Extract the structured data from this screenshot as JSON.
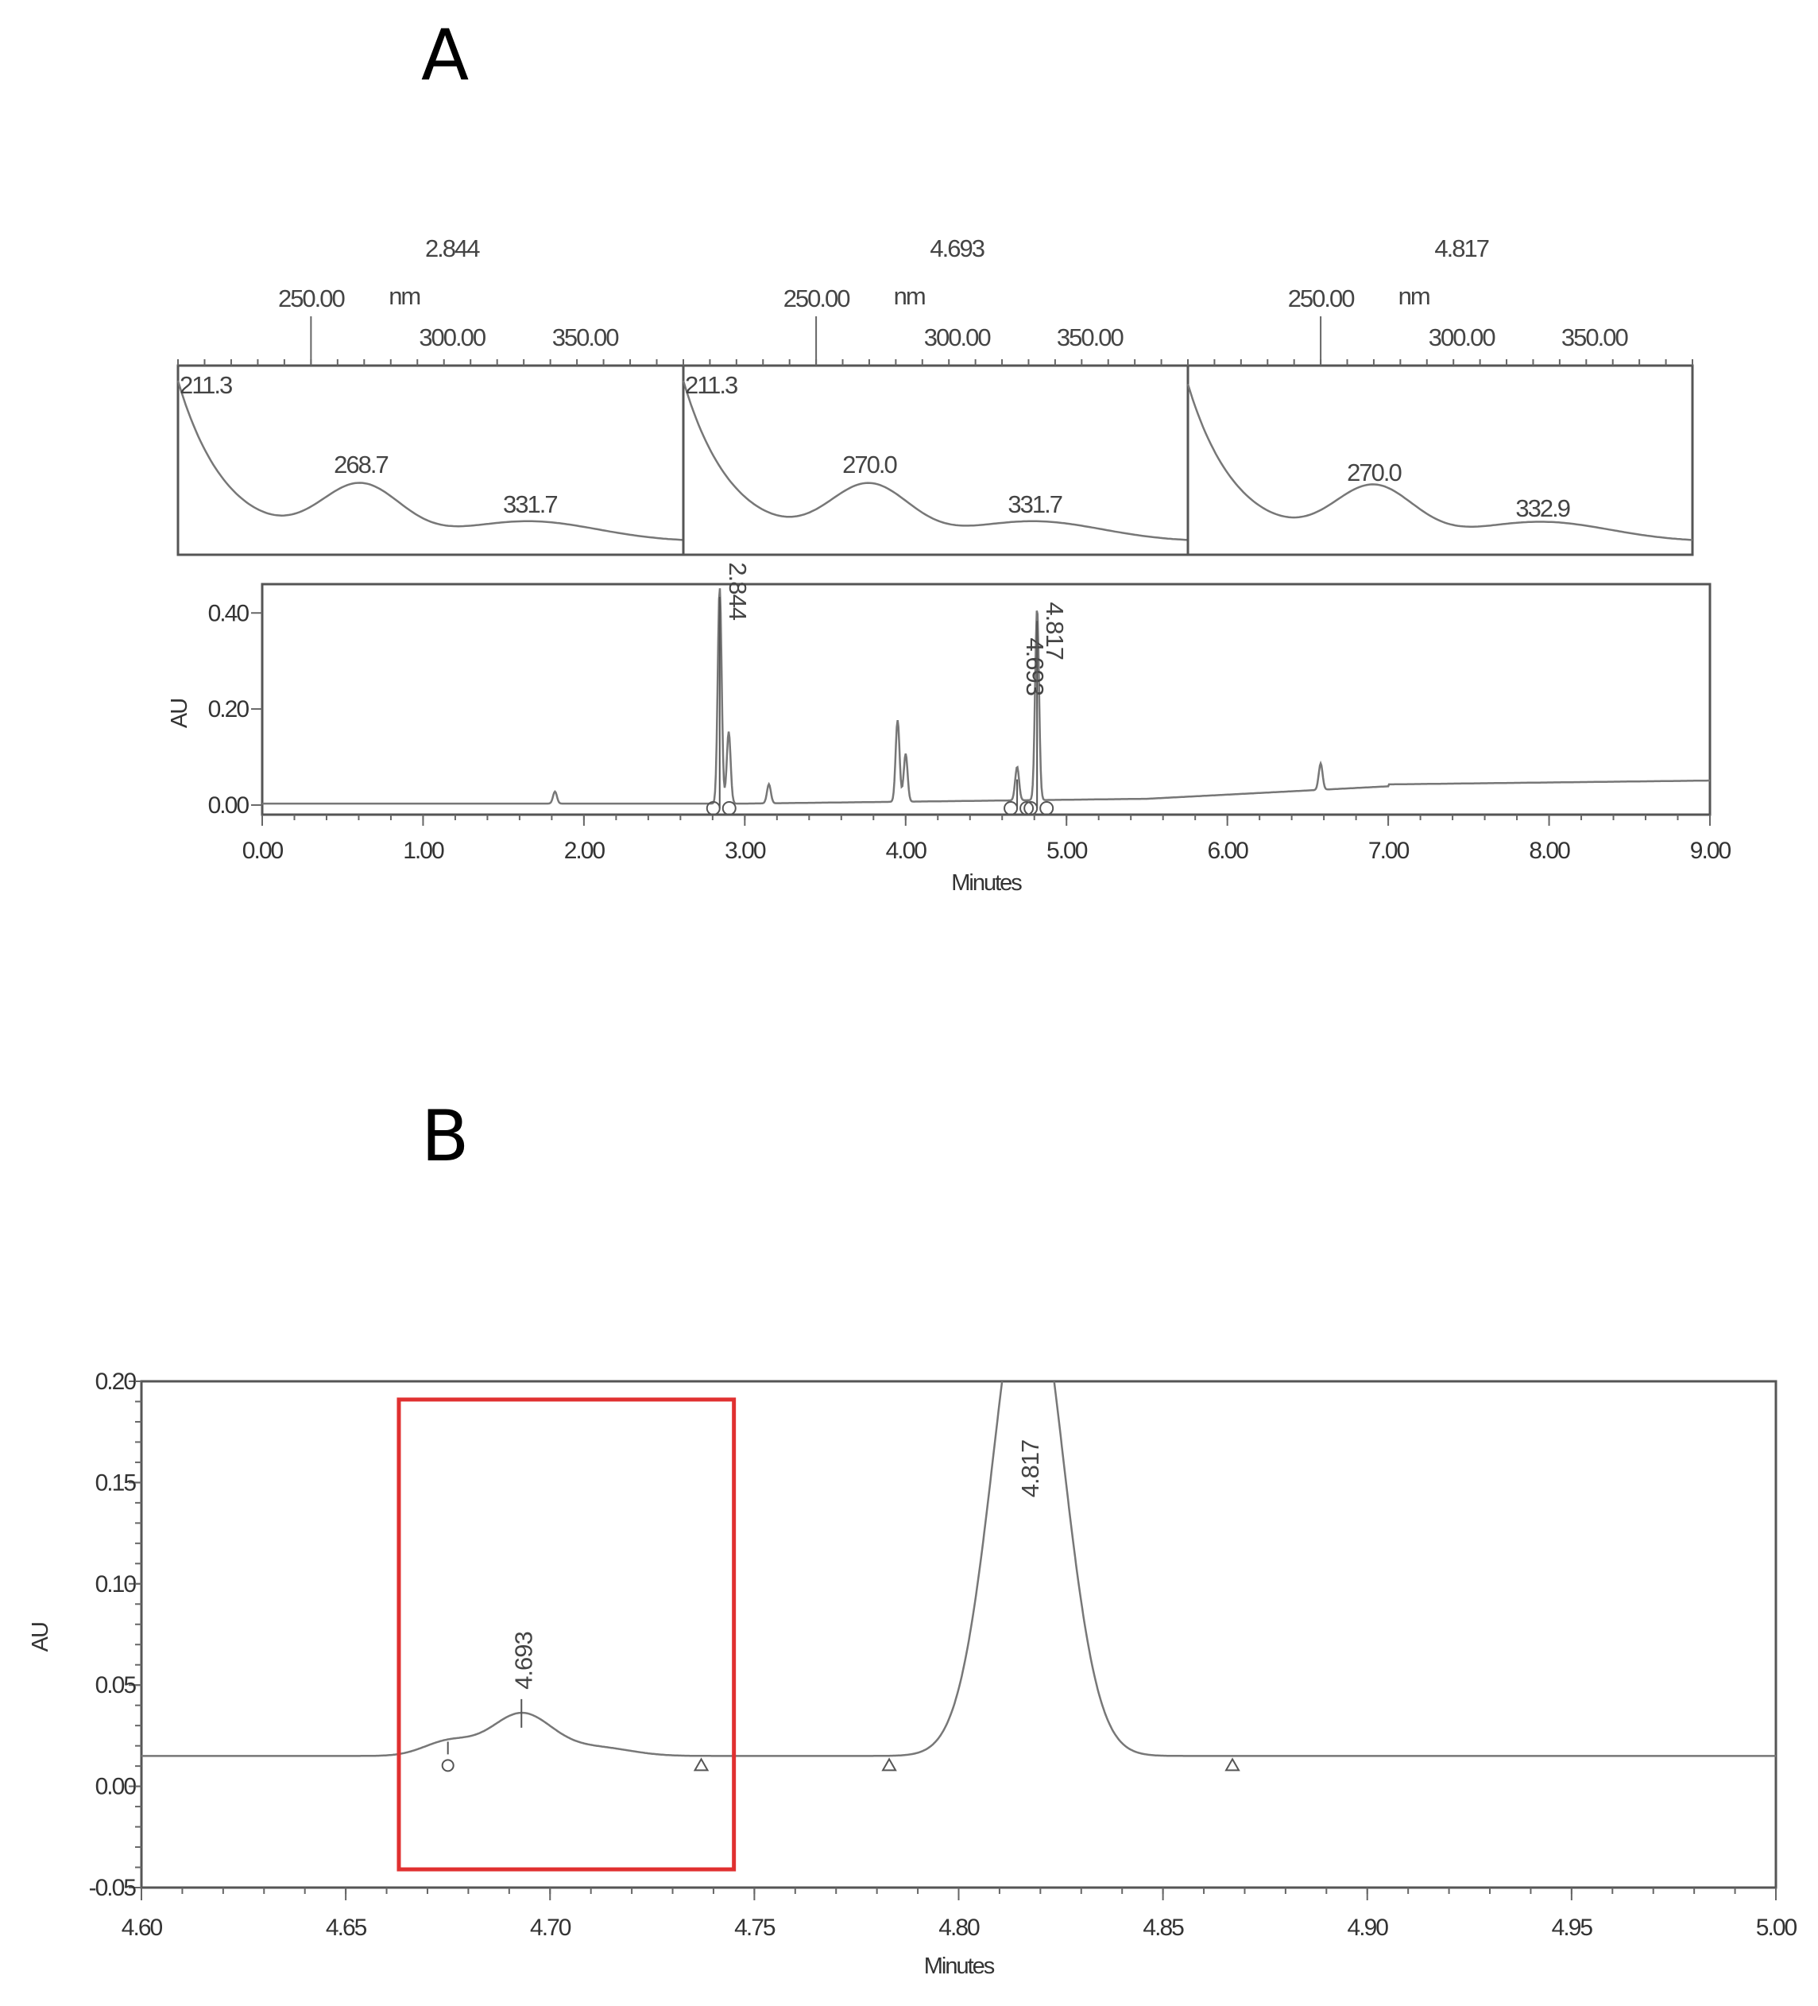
{
  "panels": {
    "a_label": "A",
    "b_label": "B"
  },
  "spectra": [
    {
      "retention_time": "2.844",
      "unit": "nm",
      "top_ticks": [
        "250.00",
        "300.00",
        "350.00"
      ],
      "peak_labels": [
        "211.3",
        "268.7",
        "331.7"
      ]
    },
    {
      "retention_time": "4.693",
      "unit": "nm",
      "top_ticks": [
        "250.00",
        "300.00",
        "350.00"
      ],
      "peak_labels": [
        "211.3",
        "270.0",
        "331.7"
      ]
    },
    {
      "retention_time": "4.817",
      "unit": "nm",
      "top_ticks": [
        "250.00",
        "300.00",
        "350.00"
      ],
      "peak_labels": [
        "270.0",
        "332.9"
      ]
    }
  ],
  "chart_data": [
    {
      "type": "line",
      "title": "",
      "xlabel": "Minutes",
      "ylabel": "AU",
      "xlim": [
        0,
        9
      ],
      "ylim": [
        -0.02,
        0.46
      ],
      "x_ticks": [
        "0.00",
        "1.00",
        "2.00",
        "3.00",
        "4.00",
        "5.00",
        "6.00",
        "7.00",
        "8.00",
        "9.00"
      ],
      "y_ticks": [
        "0.00",
        "0.20",
        "0.40"
      ],
      "peaks": [
        {
          "label": "2.844",
          "x": 2.844,
          "y": 0.45
        },
        {
          "label": "4.693",
          "x": 4.693,
          "y": 0.07
        },
        {
          "label": "4.817",
          "x": 4.817,
          "y": 0.4
        }
      ],
      "minor_peaks": [
        {
          "x": 2.9,
          "y": 0.15
        },
        {
          "x": 3.95,
          "y": 0.17
        },
        {
          "x": 4.0,
          "y": 0.1
        },
        {
          "x": 1.82,
          "y": 0.025
        },
        {
          "x": 3.15,
          "y": 0.04
        },
        {
          "x": 6.58,
          "y": 0.055
        }
      ]
    },
    {
      "type": "line",
      "title": "",
      "xlabel": "Minutes",
      "ylabel": "AU",
      "xlim": [
        4.6,
        5.0
      ],
      "ylim": [
        -0.05,
        0.2
      ],
      "x_ticks": [
        "4.60",
        "4.65",
        "4.70",
        "4.75",
        "4.80",
        "4.85",
        "4.90",
        "4.95",
        "5.00"
      ],
      "y_ticks": [
        "0.20",
        "0.15",
        "0.10",
        "0.05",
        "0.00",
        "-0.05"
      ],
      "baseline": 0.015,
      "peaks": [
        {
          "label": "4.693",
          "x": 4.693,
          "y": 0.036
        },
        {
          "label": "4.817",
          "x": 4.817,
          "y": 0.26
        }
      ],
      "highlight_box": {
        "x_range": [
          4.663,
          4.745
        ],
        "y_range": [
          -0.041,
          0.191
        ],
        "color": "#e03030"
      }
    }
  ]
}
